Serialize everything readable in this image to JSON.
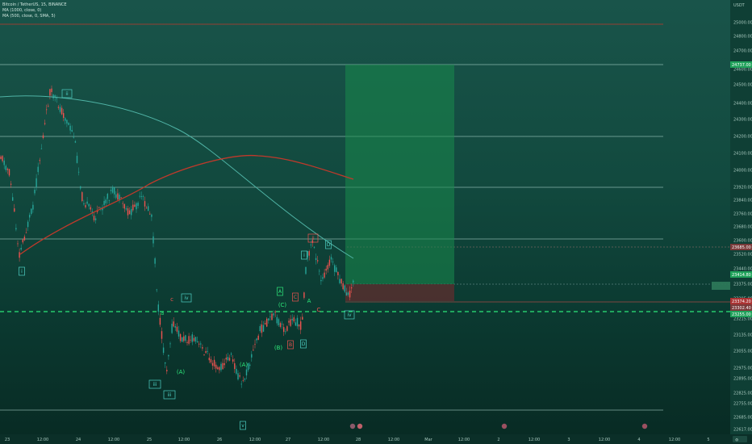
{
  "legend": {
    "symbol": "Bitcoin / TetherUS, 15, BINANCE",
    "ma1000": "MA (1000, close, 0)",
    "ma500": "MA (500, close, 0, SMA, 5)"
  },
  "currency": "USDT",
  "price_levels": [
    "25000.00",
    "24800.00",
    "24700.00",
    "24600.00",
    "24500.00",
    "24400.00",
    "24300.00",
    "24200.00",
    "24100.00",
    "24000.00",
    "23920.00",
    "23840.00",
    "23760.00",
    "23680.00",
    "23600.00",
    "23520.00",
    "23440.00",
    "23375.00",
    "23295.00",
    "23215.00",
    "23135.00",
    "23055.00",
    "22975.00",
    "22895.00",
    "22825.00",
    "22755.00",
    "22685.00",
    "22617.00"
  ],
  "price_tags": {
    "take_profit": "24737.00",
    "level_right": "23685.00",
    "current": "23414.80",
    "stop_a": "23374.20",
    "stop_b": "23302.40",
    "dashed": "23255.00"
  },
  "time_labels": [
    "23",
    "12:00",
    "24",
    "12:00",
    "25",
    "12:00",
    "26",
    "12:00",
    "27",
    "12:00",
    "28",
    "12:00",
    "Mar",
    "12:00",
    "2",
    "12:00",
    "3",
    "12:00",
    "4",
    "12:00",
    "5"
  ],
  "wave_labels": [
    {
      "t": "i",
      "c": "teal"
    },
    {
      "t": "ii",
      "c": "teal"
    },
    {
      "t": "iii",
      "c": "teal"
    },
    {
      "t": "iv",
      "c": "teal"
    },
    {
      "t": "v",
      "c": "teal"
    },
    {
      "t": "(A)",
      "c": "green"
    },
    {
      "t": "(A)",
      "c": "green"
    },
    {
      "t": "(B)",
      "c": "green"
    },
    {
      "t": "(C)",
      "c": "green"
    },
    {
      "t": "A",
      "c": "green"
    },
    {
      "t": "B",
      "c": "red"
    },
    {
      "t": "C",
      "c": "red"
    },
    {
      "t": "D",
      "c": "teal"
    },
    {
      "t": "i",
      "c": "teal"
    },
    {
      "t": "ii",
      "c": "red"
    },
    {
      "t": "iii",
      "c": "teal"
    },
    {
      "t": "D",
      "c": "teal"
    },
    {
      "t": "A",
      "c": "green"
    },
    {
      "t": "C",
      "c": "red"
    },
    {
      "t": "iv",
      "c": "teal"
    },
    {
      "t": "c",
      "c": "red"
    },
    {
      "t": "a",
      "c": "green"
    }
  ],
  "colors": {
    "bg_top": "#19544a",
    "bg_bottom": "#082a23",
    "candle_up": "#26a69a",
    "candle_down": "#ef5350",
    "ma1000": "#c0392b",
    "ma500": "#4fb3a5",
    "tp_zone": "#1a8a4d",
    "sl_zone": "#5a2e2e",
    "dashed_level": "#2ee87a"
  }
}
